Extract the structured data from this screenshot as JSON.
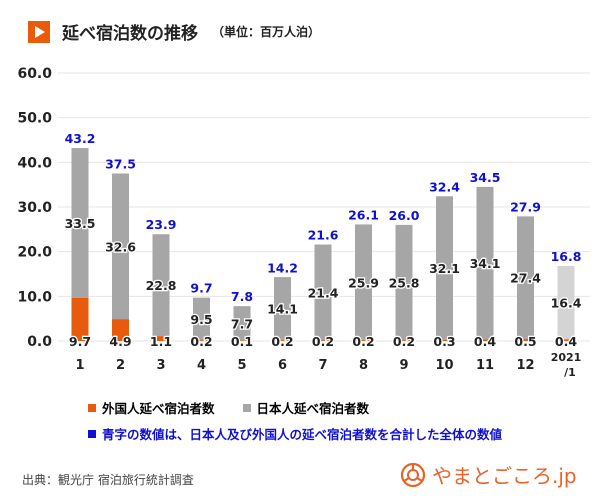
{
  "header": {
    "title": "延べ宿泊数の推移",
    "unit": "（単位：百万人泊）"
  },
  "chart_data": {
    "type": "bar",
    "stacked": true,
    "categories": [
      "1",
      "2",
      "3",
      "4",
      "5",
      "6",
      "7",
      "8",
      "9",
      "10",
      "11",
      "12",
      "2021/1"
    ],
    "series": [
      {
        "name": "外国人延べ宿泊者数",
        "color": "#e85a0c",
        "values": [
          9.7,
          4.9,
          1.1,
          0.2,
          0.1,
          0.2,
          0.2,
          0.2,
          0.2,
          0.3,
          0.4,
          0.5,
          0.4
        ]
      },
      {
        "name": "日本人延べ宿泊者数",
        "color": "#a6a6a6",
        "values": [
          33.5,
          32.6,
          22.8,
          9.5,
          7.7,
          14.1,
          21.4,
          25.9,
          25.8,
          32.1,
          34.1,
          27.4,
          16.4
        ]
      }
    ],
    "totals": [
      43.2,
      37.5,
      23.9,
      9.7,
      7.8,
      14.2,
      21.6,
      26.1,
      26.0,
      32.4,
      34.5,
      27.9,
      16.8
    ],
    "total_color": "#1010d0",
    "highlight_last_color": "#d4d4d4",
    "yticks": [
      "0.0",
      "10.0",
      "20.0",
      "30.0",
      "40.0",
      "50.0",
      "60.0"
    ],
    "ylim": [
      0,
      60
    ],
    "grid": true
  },
  "legend": {
    "foreign": "外国人延べ宿泊者数",
    "japanese": "日本人延べ宿泊者数",
    "note": "青字の数値は、日本人及び外国人の延べ宿泊者数を合計した全体の数値"
  },
  "footer": {
    "source": "出典：観光庁 宿泊旅行統計調査",
    "logo": "やまとごころ.jp"
  }
}
